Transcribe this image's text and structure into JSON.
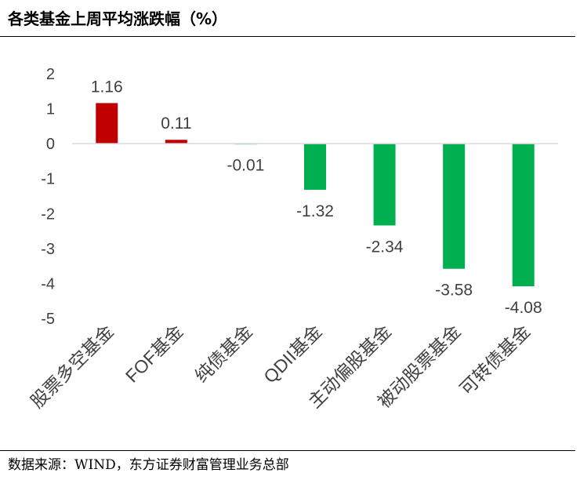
{
  "header": {
    "title": "各类基金上周平均涨跌幅（%）"
  },
  "footer": {
    "source": "数据来源：WIND，东方证券财富管理业务总部"
  },
  "chart_data": {
    "type": "bar",
    "title": "各类基金上周平均涨跌幅（%）",
    "categories": [
      "股票多空基金",
      "FOF基金",
      "纯债基金",
      "QDII基金",
      "主动偏股基金",
      "被动股票基金",
      "可转债基金"
    ],
    "values": [
      1.16,
      0.11,
      -0.01,
      -1.32,
      -2.34,
      -3.58,
      -4.08
    ],
    "data_labels": [
      "1.16",
      "0.11",
      "-0.01",
      "-1.32",
      "-2.34",
      "-3.58",
      "-4.08"
    ],
    "ylim": [
      -5,
      2
    ],
    "yticks": [
      "2",
      "1",
      "0",
      "-1",
      "-2",
      "-3",
      "-4",
      "-5"
    ],
    "ytick_values": [
      2,
      1,
      0,
      -1,
      -2,
      -3,
      -4,
      -5
    ],
    "xlabel": "",
    "ylabel": "",
    "grid": false,
    "legend": "none",
    "colors": {
      "positive": "#c00000",
      "negative": "#00b050",
      "axis": "#d9d9d9",
      "text": "#404040"
    }
  }
}
